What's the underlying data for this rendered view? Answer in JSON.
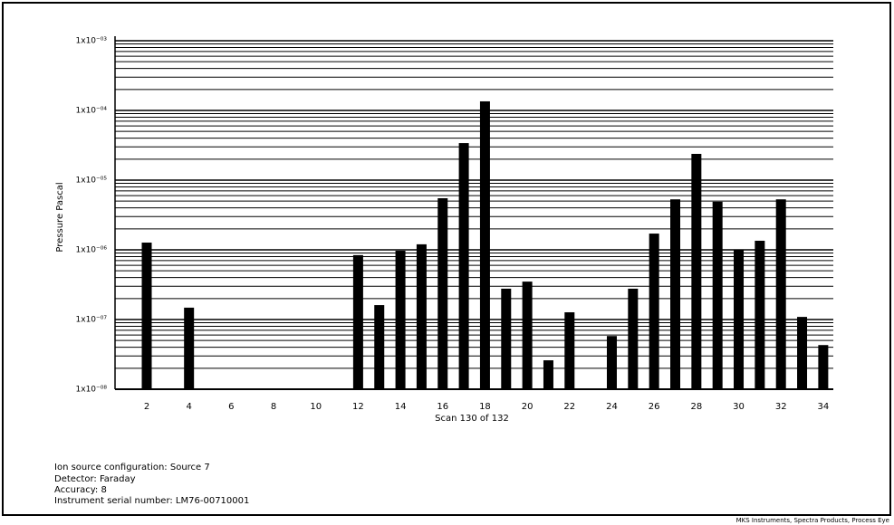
{
  "chart_data": {
    "type": "bar",
    "log_scale": true,
    "grid": true,
    "minor_grid": true,
    "color": "#000000",
    "x_label": "Scan 130 of 132",
    "y_label": "Pressure Pascal",
    "categories": [
      null,
      "2",
      null,
      "4",
      null,
      "6",
      null,
      "8",
      null,
      "10",
      null,
      "12",
      null,
      "14",
      null,
      "16",
      null,
      "18",
      null,
      "20",
      null,
      "22",
      null,
      "24",
      null,
      "26",
      null,
      "28",
      null,
      "30",
      null,
      "32",
      null,
      "34"
    ],
    "values": [
      null,
      1.27e-06,
      null,
      1.48e-07,
      null,
      null,
      null,
      null,
      null,
      null,
      null,
      8.4e-07,
      1.61e-07,
      9.7e-07,
      1.2e-06,
      5.5e-06,
      3.4e-05,
      0.000135,
      2.77e-07,
      3.5e-07,
      2.6e-08,
      1.27e-07,
      null,
      5.8e-08,
      2.77e-07,
      1.71e-06,
      5.3e-06,
      2.38e-05,
      4.9e-06,
      1e-06,
      1.35e-06,
      5.3e-06,
      1.09e-07,
      4.3e-08
    ],
    "ylim": [
      1e-08,
      0.001
    ],
    "yticks": [
      {
        "value": 1e-08,
        "label": "1x10⁻⁰⁸"
      },
      {
        "value": 1e-07,
        "label": "1x10⁻⁰⁷"
      },
      {
        "value": 1e-06,
        "label": "1x10⁻⁰⁶"
      },
      {
        "value": 1e-05,
        "label": "1x10⁻⁰⁵"
      },
      {
        "value": 0.0001,
        "label": "1x10⁻⁰⁴"
      },
      {
        "value": 0.001,
        "label": "1x10⁻⁰³"
      }
    ],
    "info": [
      "Ion source configuration: Source 7",
      "Detector: Faraday",
      "Accuracy: 8",
      "Instrument serial number: LM76-00710001"
    ],
    "footer": "MKS Instruments, Spectra Products, Process Eye"
  }
}
